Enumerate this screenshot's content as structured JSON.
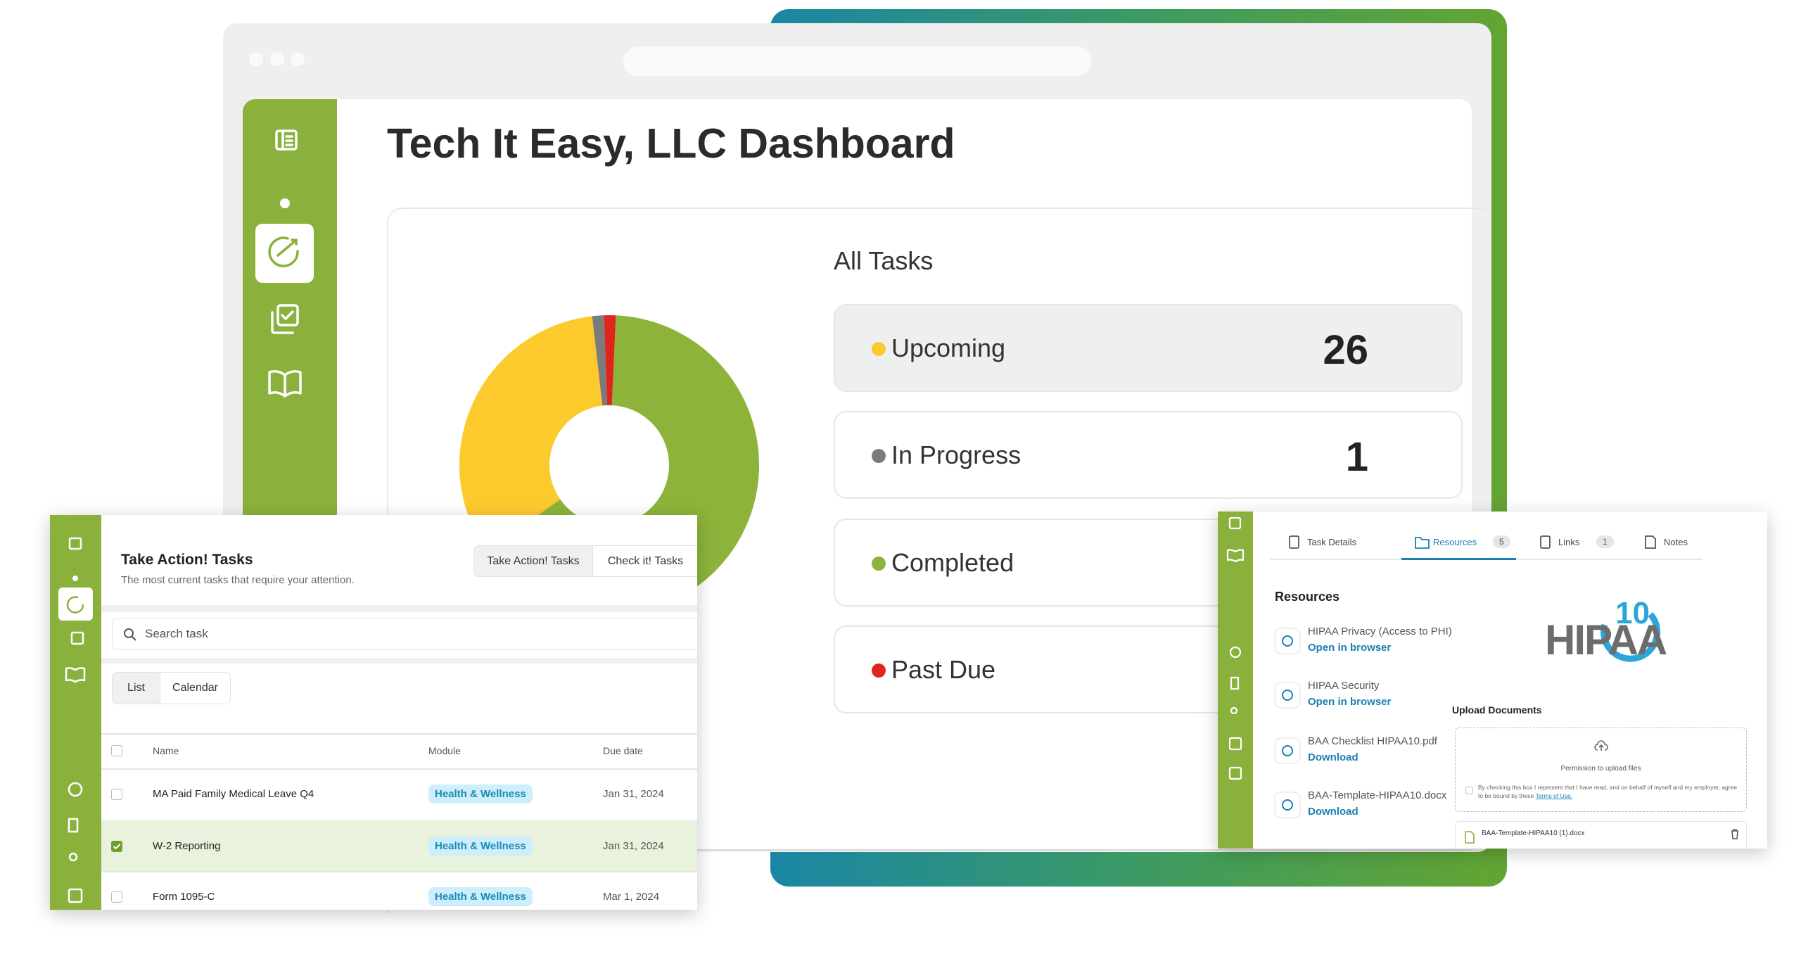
{
  "dashboard_title": "Tech It Easy, LLC Dashboard",
  "chart_data": {
    "type": "pie",
    "title": "All Tasks",
    "categories": [
      "Upcoming",
      "In Progress",
      "Completed",
      "Past Due"
    ],
    "values": [
      26,
      1,
      51,
      1
    ],
    "printed_counts": [
      true,
      true,
      false,
      false
    ],
    "colors": [
      "#fdca2e",
      "#7b7b7b",
      "#8db33a",
      "#e0261c"
    ],
    "donut": true
  },
  "take_action": {
    "title": "Take Action! Tasks",
    "subtitle": "The most current tasks that require your attention.",
    "tabs": [
      "Take Action! Tasks",
      "Check it! Tasks"
    ],
    "search_placeholder": "Search task",
    "views": [
      "List",
      "Calendar"
    ],
    "columns": [
      "Name",
      "Module",
      "Due date"
    ],
    "rows": [
      {
        "name": "MA Paid Family Medical Leave Q4",
        "module": "Health & Wellness",
        "due": "Jan 31, 2024",
        "checked": false
      },
      {
        "name": "W-2 Reporting",
        "module": "Health & Wellness",
        "due": "Jan 31, 2024",
        "checked": true
      },
      {
        "name": "Form 1095-C",
        "module": "Health & Wellness",
        "due": "Mar 1, 2024",
        "checked": false
      }
    ]
  },
  "resources_panel": {
    "tabs": [
      {
        "label": "Task Details"
      },
      {
        "label": "Resources",
        "count": 5
      },
      {
        "label": "Links",
        "count": 1
      },
      {
        "label": "Notes"
      }
    ],
    "heading": "Resources",
    "items": [
      {
        "name": "HIPAA Privacy (Access to PHI)",
        "action": "Open in browser"
      },
      {
        "name": "HIPAA Security",
        "action": "Open in browser"
      },
      {
        "name": "BAA Checklist HIPAA10.pdf",
        "action": "Download"
      },
      {
        "name": "BAA-Template-HIPAA10.docx",
        "action": "Download"
      }
    ],
    "logo": {
      "text": "HIPAA",
      "number": "10"
    },
    "upload": {
      "heading": "Upload Documents",
      "prompt": "Permission to upload files",
      "consent": "By checking this box I represent that I have read, and on behalf of myself and my employer, agree to be bound by these",
      "consent_link": "Terms of Use.",
      "file": "BAA-Template-HIPAA10 (1).docx"
    }
  }
}
